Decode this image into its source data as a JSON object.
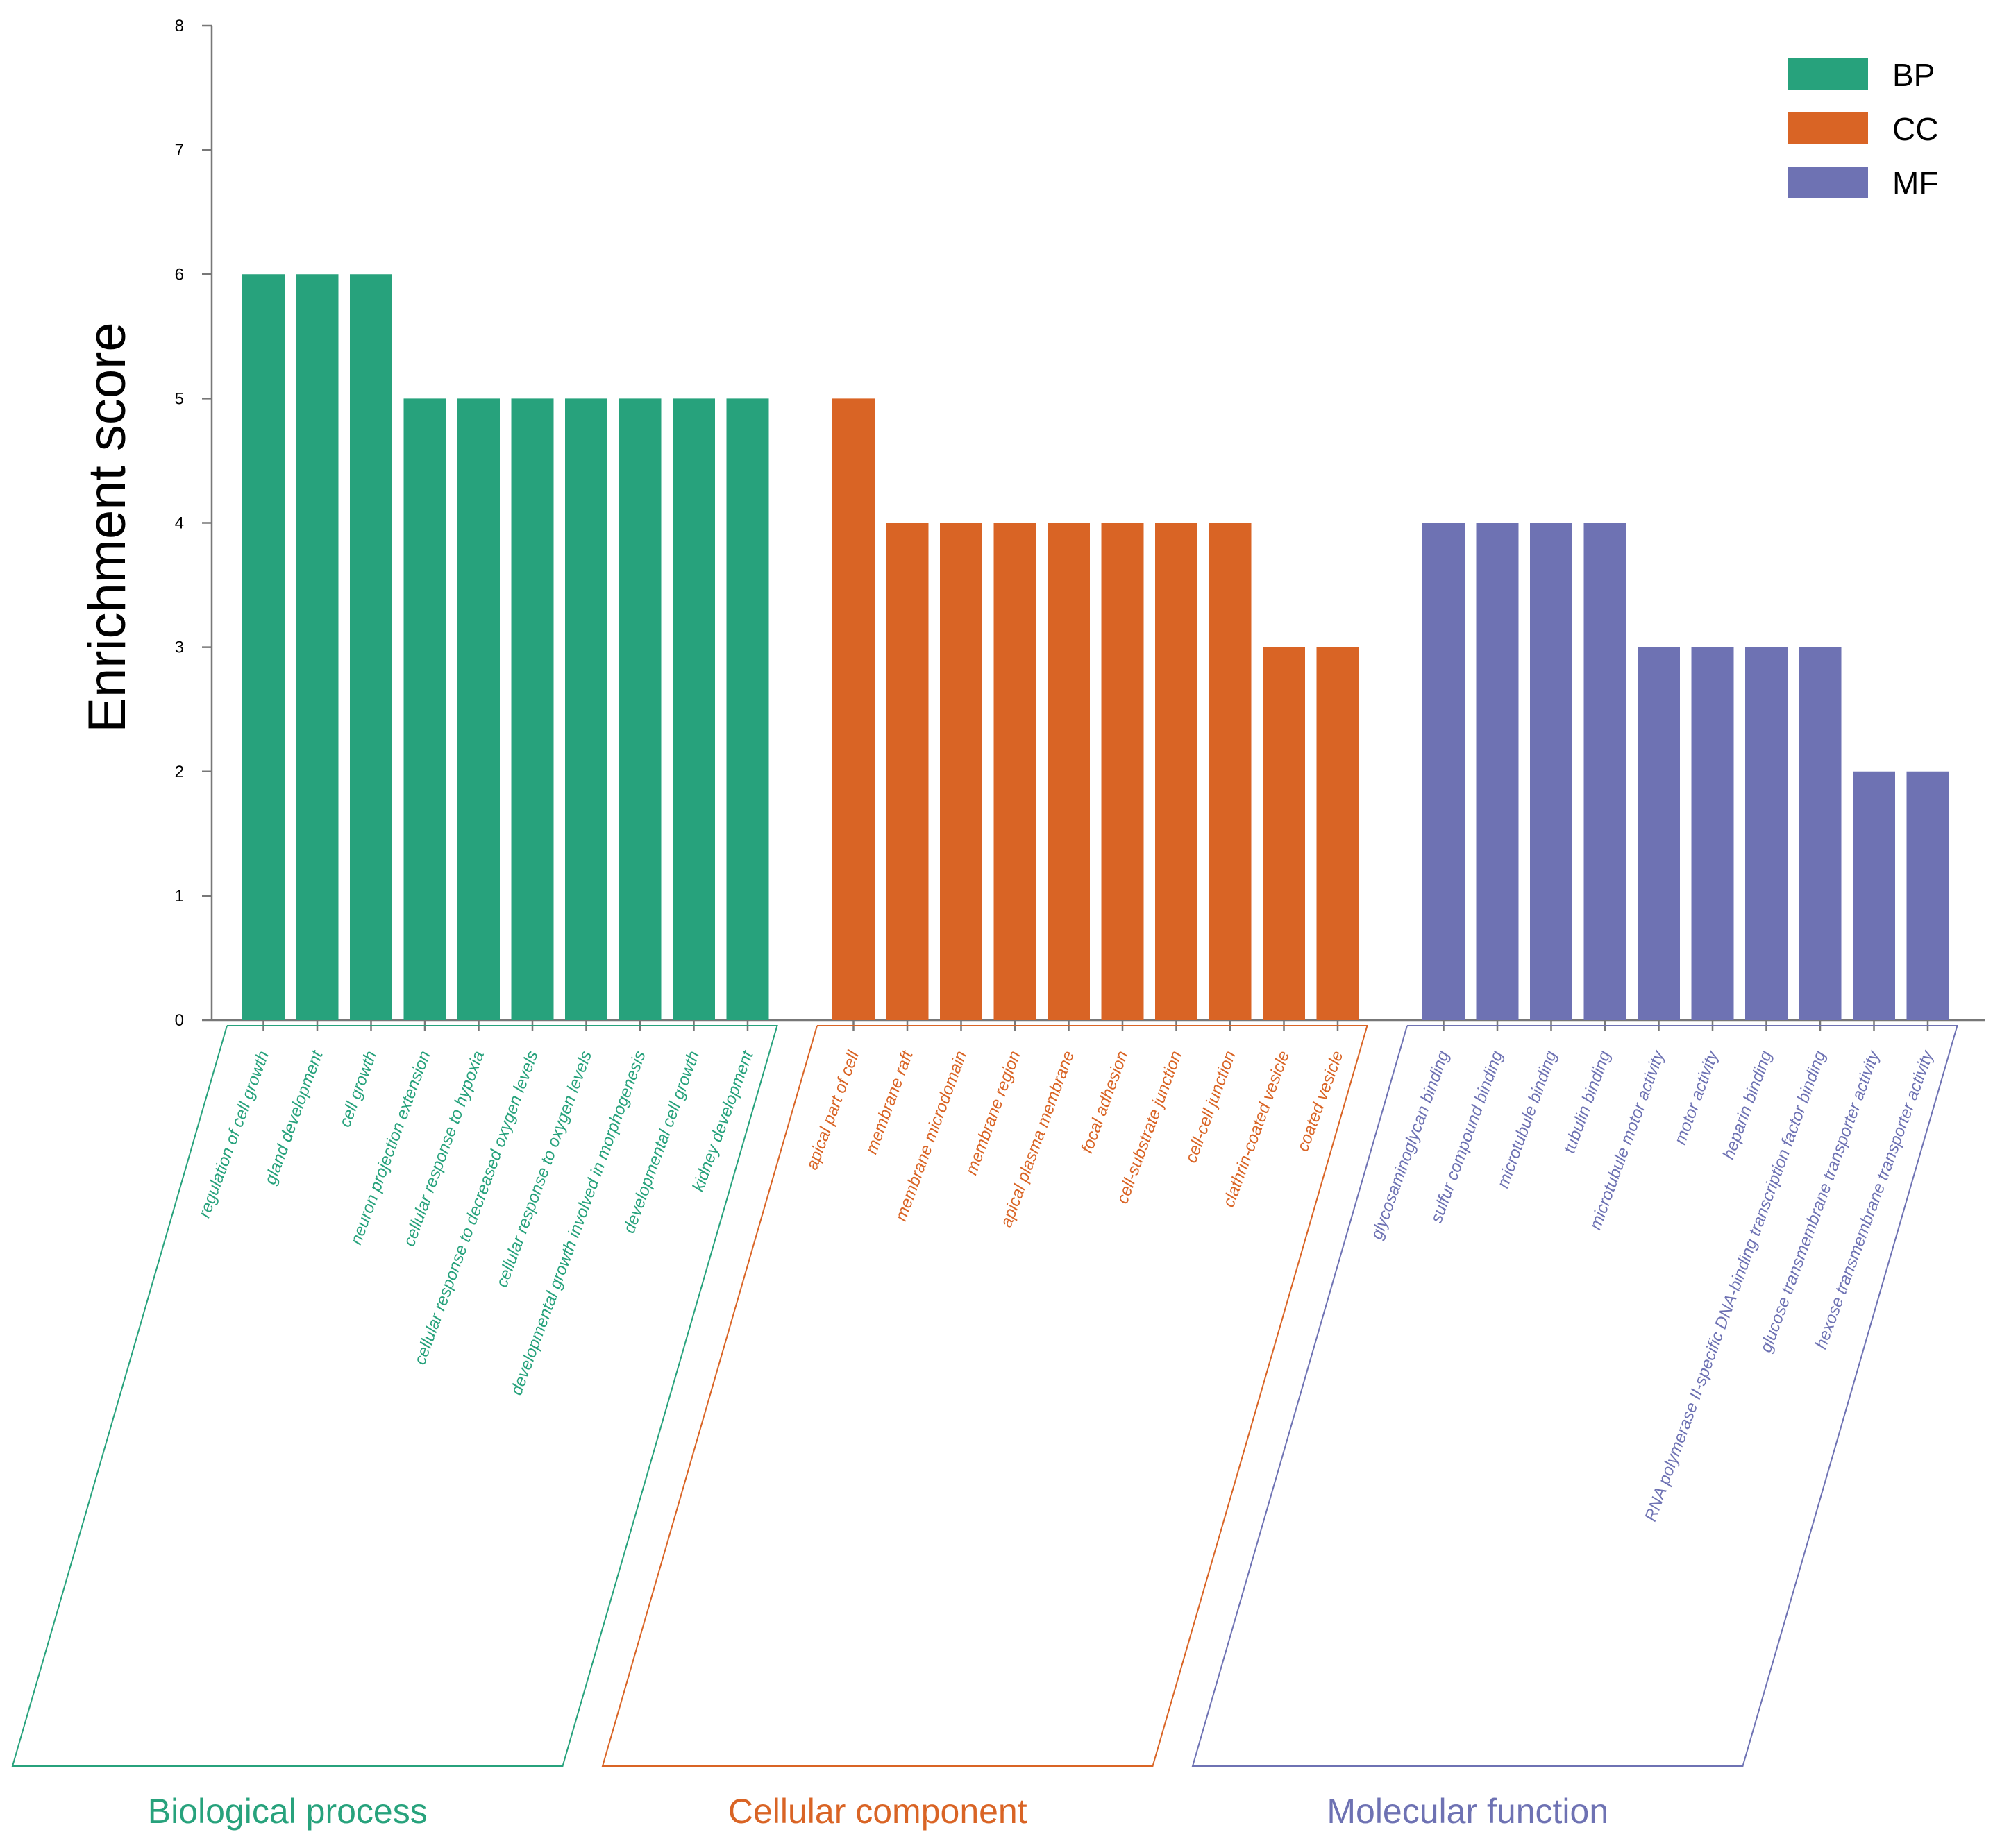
{
  "chart_data": {
    "type": "bar",
    "title": "",
    "xlabel": "",
    "ylabel": "Enrichment score",
    "ylim": [
      0,
      8
    ],
    "yticks": [
      "0",
      "1",
      "2",
      "3",
      "4",
      "5",
      "6",
      "7",
      "8"
    ],
    "grid": false,
    "legend": {
      "placement": "top-right",
      "entries": [
        {
          "key": "BP",
          "label": "BP",
          "color": "#27a27c"
        },
        {
          "key": "CC",
          "label": "CC",
          "color": "#d96425"
        },
        {
          "key": "MF",
          "label": "MF",
          "color": "#6e72b3"
        }
      ]
    },
    "groups": [
      {
        "key": "BP",
        "label": "Biological process",
        "color": "#27a27c",
        "categories": [
          "regulation of cell growth",
          "gland development",
          "cell growth",
          "neuron projection extension",
          "cellular response to hypoxia",
          "cellular response to decreased oxygen levels",
          "cellular response to oxygen levels",
          "developmental growth involved in morphogenesis",
          "developmental cell growth",
          "kidney development"
        ],
        "values": [
          6,
          6,
          6,
          5,
          5,
          5,
          5,
          5,
          5,
          5
        ]
      },
      {
        "key": "CC",
        "label": "Cellular component",
        "color": "#d96425",
        "categories": [
          "apical part of cell",
          "membrane raft",
          "membrane microdomain",
          "membrane region",
          "apical plasma membrane",
          "focal adhesion",
          "cell-substrate junction",
          "cell-cell junction",
          "clathrin-coated vesicle",
          "coated vesicle"
        ],
        "values": [
          5,
          4,
          4,
          4,
          4,
          4,
          4,
          4,
          3,
          3
        ]
      },
      {
        "key": "MF",
        "label": "Molecular function",
        "color": "#6e72b3",
        "categories": [
          "glycosaminoglycan binding",
          "sulfur compound binding",
          "microtubule binding",
          "tubulin binding",
          "microtubule motor activity",
          "motor activity",
          "heparin binding",
          "RNA polymerase II-specific DNA-binding transcription factor binding",
          "glucose transmembrane transporter activity",
          "hexose transmembrane transporter activity"
        ],
        "values": [
          4,
          4,
          4,
          4,
          3,
          3,
          3,
          3,
          2,
          2
        ]
      }
    ]
  }
}
